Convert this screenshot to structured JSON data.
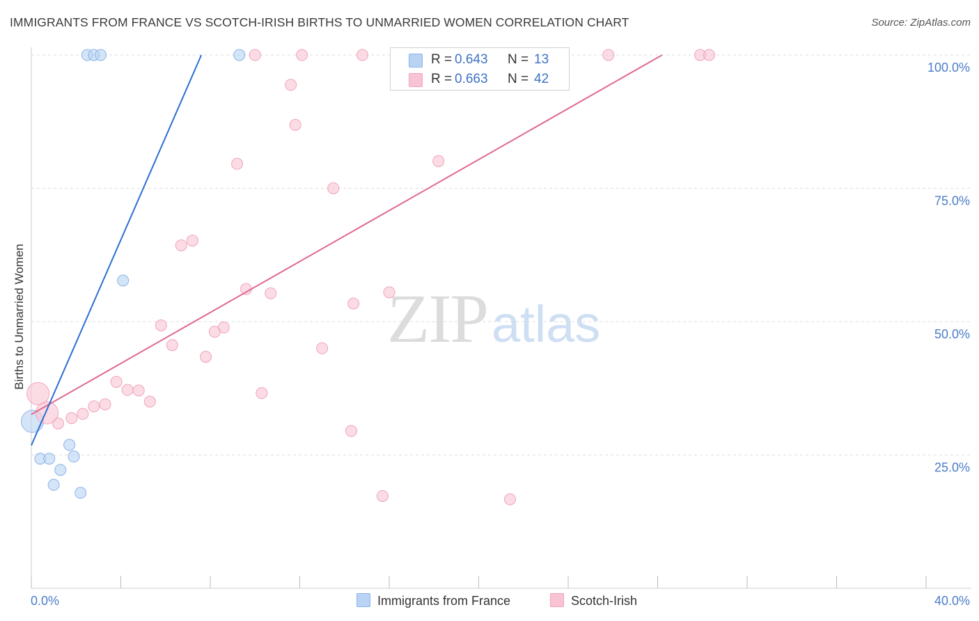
{
  "header": {
    "title": "IMMIGRANTS FROM FRANCE VS SCOTCH-IRISH BIRTHS TO UNMARRIED WOMEN CORRELATION CHART",
    "source": "Source: ZipAtlas.com"
  },
  "watermark": {
    "zip": "ZIP",
    "atlas": "atlas"
  },
  "legend": {
    "rows": [
      {
        "r_label": "R =",
        "r_value": "0.643",
        "n_label": "N =",
        "n_value": "13"
      },
      {
        "r_label": "R =",
        "r_value": "0.663",
        "n_label": "N =",
        "n_value": "42"
      }
    ]
  },
  "bottom_legend": {
    "items": [
      {
        "label": "Immigrants from France"
      },
      {
        "label": "Scotch-Irish"
      }
    ]
  },
  "colors": {
    "france_fill": "#b9d3f4",
    "france_stroke": "#8bb3e8",
    "france_line": "#2b6fd0",
    "scotch_fill": "#f8c4d4",
    "scotch_stroke": "#f0a3bb",
    "scotch_line": "#e06890"
  },
  "chart_data": {
    "type": "scatter",
    "title": "IMMIGRANTS FROM FRANCE VS SCOTCH-IRISH BIRTHS TO UNMARRIED WOMEN CORRELATION CHART",
    "xlabel": "",
    "ylabel": "Births to Unmarried Women",
    "xlim": [
      0,
      40
    ],
    "ylim": [
      0,
      102
    ],
    "x_tick_labels": [
      "0.0%",
      "40.0%"
    ],
    "y_ticks": [
      25,
      50,
      75,
      100
    ],
    "y_tick_labels": [
      "25.0%",
      "50.0%",
      "75.0%",
      "100.0%"
    ],
    "grid": true,
    "legend_position": "top-center",
    "series": [
      {
        "name": "Immigrants from France",
        "points": [
          {
            "x": 2.5,
            "y": 100
          },
          {
            "x": 2.8,
            "y": 100
          },
          {
            "x": 3.1,
            "y": 100
          },
          {
            "x": 9.3,
            "y": 100
          },
          {
            "x": 4.1,
            "y": 57.7
          },
          {
            "x": 0.4,
            "y": 24.3
          },
          {
            "x": 0.8,
            "y": 24.3
          },
          {
            "x": 1.3,
            "y": 22.2
          },
          {
            "x": 1.7,
            "y": 26.9
          },
          {
            "x": 1.9,
            "y": 24.7
          },
          {
            "x": 1.0,
            "y": 19.4
          },
          {
            "x": 2.2,
            "y": 17.9
          },
          {
            "x": 0.05,
            "y": 31.3,
            "size": "large"
          }
        ],
        "trend": {
          "x": [
            0.0,
            7.6
          ],
          "y": [
            26.8,
            100
          ]
        }
      },
      {
        "name": "Scotch-Irish",
        "points": [
          {
            "x": 12.1,
            "y": 100
          },
          {
            "x": 14.8,
            "y": 100
          },
          {
            "x": 18.9,
            "y": 100
          },
          {
            "x": 20.3,
            "y": 100
          },
          {
            "x": 25.8,
            "y": 100
          },
          {
            "x": 29.9,
            "y": 100
          },
          {
            "x": 30.3,
            "y": 100
          },
          {
            "x": 11.6,
            "y": 94.4
          },
          {
            "x": 11.8,
            "y": 86.9
          },
          {
            "x": 9.2,
            "y": 79.6
          },
          {
            "x": 18.2,
            "y": 80.1
          },
          {
            "x": 13.5,
            "y": 75.0
          },
          {
            "x": 6.7,
            "y": 64.3
          },
          {
            "x": 7.2,
            "y": 65.2
          },
          {
            "x": 9.6,
            "y": 56.1
          },
          {
            "x": 10.7,
            "y": 55.3
          },
          {
            "x": 14.4,
            "y": 53.4
          },
          {
            "x": 16.0,
            "y": 55.5
          },
          {
            "x": 5.8,
            "y": 49.3
          },
          {
            "x": 8.6,
            "y": 48.9
          },
          {
            "x": 8.2,
            "y": 48.1
          },
          {
            "x": 6.3,
            "y": 45.6
          },
          {
            "x": 7.8,
            "y": 43.4
          },
          {
            "x": 13.0,
            "y": 45.0
          },
          {
            "x": 3.8,
            "y": 38.7
          },
          {
            "x": 4.3,
            "y": 37.2
          },
          {
            "x": 4.8,
            "y": 37.1
          },
          {
            "x": 5.3,
            "y": 35.0
          },
          {
            "x": 10.3,
            "y": 36.6
          },
          {
            "x": 3.3,
            "y": 34.5
          },
          {
            "x": 2.8,
            "y": 34.1
          },
          {
            "x": 2.3,
            "y": 32.7
          },
          {
            "x": 1.8,
            "y": 31.9
          },
          {
            "x": 1.2,
            "y": 30.9
          },
          {
            "x": 0.7,
            "y": 32.9,
            "size": "large"
          },
          {
            "x": 0.3,
            "y": 36.5,
            "size": "large"
          },
          {
            "x": 14.3,
            "y": 29.5
          },
          {
            "x": 15.7,
            "y": 17.3
          },
          {
            "x": 21.4,
            "y": 16.7
          },
          {
            "x": 19.3,
            "y": 100
          },
          {
            "x": 22.4,
            "y": 100
          },
          {
            "x": 10.0,
            "y": 100
          }
        ],
        "trend": {
          "x": [
            0.0,
            28.2
          ],
          "y": [
            32.6,
            100
          ]
        }
      }
    ]
  }
}
